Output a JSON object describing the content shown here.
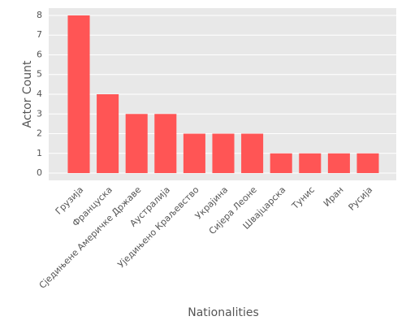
{
  "chart_data": {
    "type": "bar",
    "x_label": "Nationalities",
    "y_label": "Actor Count",
    "categories": [
      "Грузија",
      "Француска",
      "Сједињене Америчке Државе",
      "Аустралија",
      "Уједињено Краљевство",
      "Украјина",
      "Сијера Леоне",
      "Швајцарска",
      "Тунис",
      "Иран",
      "Русија"
    ],
    "values": [
      8,
      4,
      3,
      3,
      2,
      2,
      2,
      1,
      1,
      1,
      1
    ],
    "color": "#ff5555",
    "ylim": [
      -0.37,
      8.37
    ],
    "yticks": [
      0,
      1,
      2,
      3,
      4,
      5,
      6,
      7,
      8
    ],
    "grid": true
  }
}
